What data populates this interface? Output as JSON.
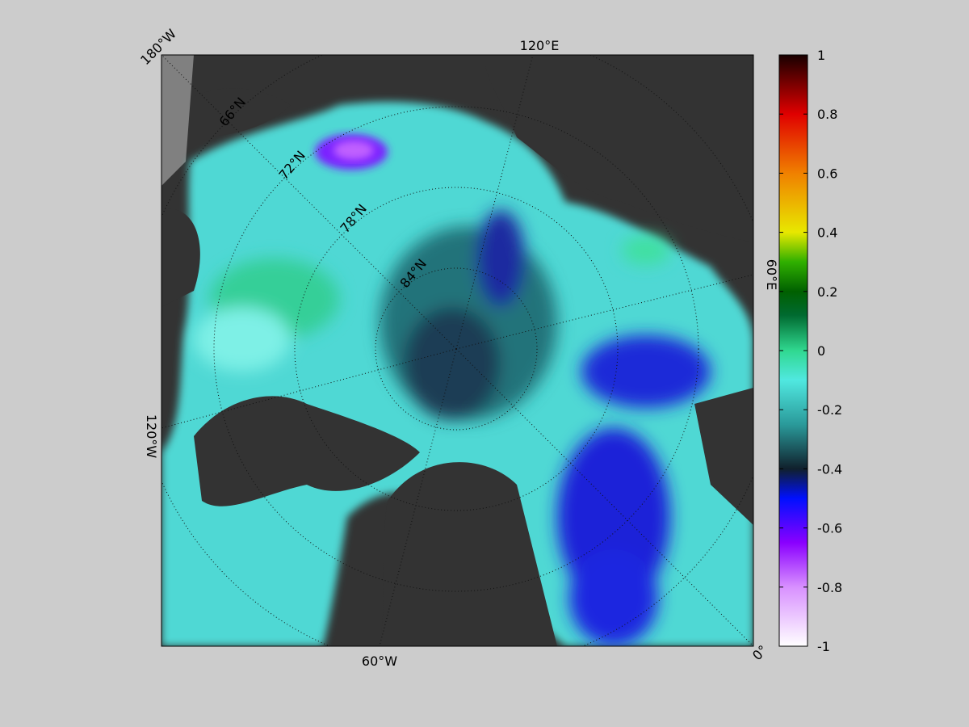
{
  "map": {
    "meridian_labels": [
      "180°W",
      "120°E",
      "60°E",
      "0°",
      "60°W",
      "120°W"
    ],
    "latitude_labels": [
      "66°N",
      "72°N",
      "78°N",
      "84°N"
    ]
  },
  "colorbar": {
    "lim": [
      -1,
      1
    ],
    "ticks": [
      -1,
      -0.8,
      -0.6,
      -0.4,
      -0.2,
      0,
      0.2,
      0.4,
      0.6,
      0.8,
      1
    ],
    "stops": [
      {
        "value": -1,
        "color": "#ffffff"
      },
      {
        "value": -0.8,
        "color": "#d890ff"
      },
      {
        "value": -0.65,
        "color": "#8a00ff"
      },
      {
        "value": -0.5,
        "color": "#0010ff"
      },
      {
        "value": -0.4,
        "color": "#10202c"
      },
      {
        "value": -0.25,
        "color": "#2a9a9a"
      },
      {
        "value": -0.1,
        "color": "#50e8e0"
      },
      {
        "value": 0,
        "color": "#30d890"
      },
      {
        "value": 0.12,
        "color": "#006a30"
      },
      {
        "value": 0.2,
        "color": "#006000"
      },
      {
        "value": 0.3,
        "color": "#30b000"
      },
      {
        "value": 0.4,
        "color": "#e8e800"
      },
      {
        "value": 0.6,
        "color": "#f08000"
      },
      {
        "value": 0.8,
        "color": "#e00000"
      },
      {
        "value": 1,
        "color": "#180000"
      }
    ]
  }
}
